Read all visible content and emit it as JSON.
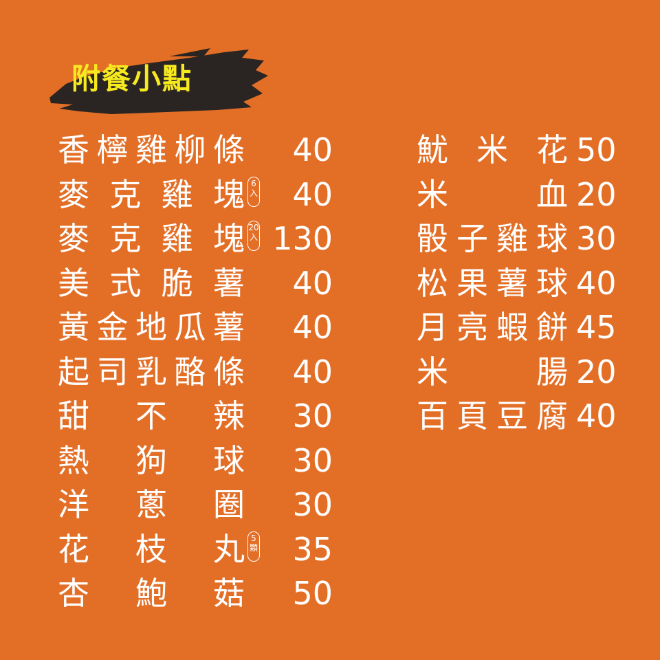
{
  "header": {
    "title": "附餐小點",
    "title_color": "#f6ea1f",
    "background_color": "#e36f27",
    "brush_color": "#2a2522"
  },
  "left_menu": [
    {
      "name": "香檸雞柳條",
      "price": "40",
      "note": ""
    },
    {
      "name": "麥克雞塊",
      "price": "40",
      "note": "6入"
    },
    {
      "name": "麥克雞塊",
      "price": "130",
      "note": "20入"
    },
    {
      "name": "美式脆薯",
      "price": "40",
      "note": ""
    },
    {
      "name": "黃金地瓜薯",
      "price": "40",
      "note": ""
    },
    {
      "name": "起司乳酪條",
      "price": "40",
      "note": ""
    },
    {
      "name": "甜不辣",
      "price": "30",
      "note": ""
    },
    {
      "name": "熱狗球",
      "price": "30",
      "note": ""
    },
    {
      "name": "洋蔥圈",
      "price": "30",
      "note": ""
    },
    {
      "name": "花枝丸",
      "price": "35",
      "note": "5顆"
    },
    {
      "name": "杏鮑菇",
      "price": "50",
      "note": ""
    }
  ],
  "right_menu": [
    {
      "name": "魷米花",
      "price": "50"
    },
    {
      "name": "米血",
      "price": "20"
    },
    {
      "name": "骰子雞球",
      "price": "30"
    },
    {
      "name": "松果薯球",
      "price": "40"
    },
    {
      "name": "月亮蝦餅",
      "price": "45"
    },
    {
      "name": "米腸",
      "price": "20"
    },
    {
      "name": "百頁豆腐",
      "price": "40"
    }
  ]
}
